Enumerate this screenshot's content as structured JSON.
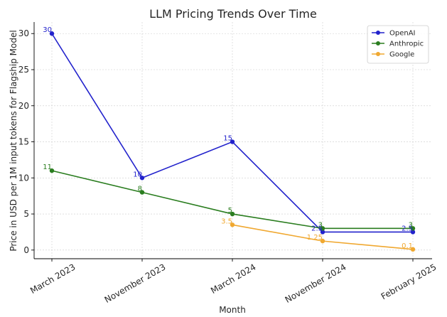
{
  "chart_data": {
    "type": "line",
    "title": "LLM Pricing Trends Over Time",
    "xlabel": "Month",
    "ylabel": "Price in USD per 1M input tokens for Flagship Model",
    "categories": [
      "March 2023",
      "November 2023",
      "March 2024",
      "November 2024",
      "February 2025"
    ],
    "ylim": [
      -1.2,
      31.6
    ],
    "yticks": [
      0,
      5,
      10,
      15,
      20,
      25,
      30
    ],
    "grid": true,
    "legend_position": "top-right",
    "series": [
      {
        "name": "OpenAI",
        "color": "#2222cc",
        "values": [
          30,
          10,
          15,
          2.5,
          2.5
        ],
        "labels": [
          "30",
          "10",
          "15",
          "2.5",
          "2.5"
        ]
      },
      {
        "name": "Anthropic",
        "color": "#2a7d1f",
        "values": [
          11,
          8,
          5,
          3,
          3
        ],
        "labels": [
          "11",
          "8",
          "5",
          "3",
          "3"
        ]
      },
      {
        "name": "Google",
        "color": "#f0a830",
        "values": [
          null,
          null,
          3.5,
          1.25,
          0.1
        ],
        "labels": [
          "",
          "",
          "3.5",
          "1.25",
          "0.1"
        ]
      }
    ]
  }
}
